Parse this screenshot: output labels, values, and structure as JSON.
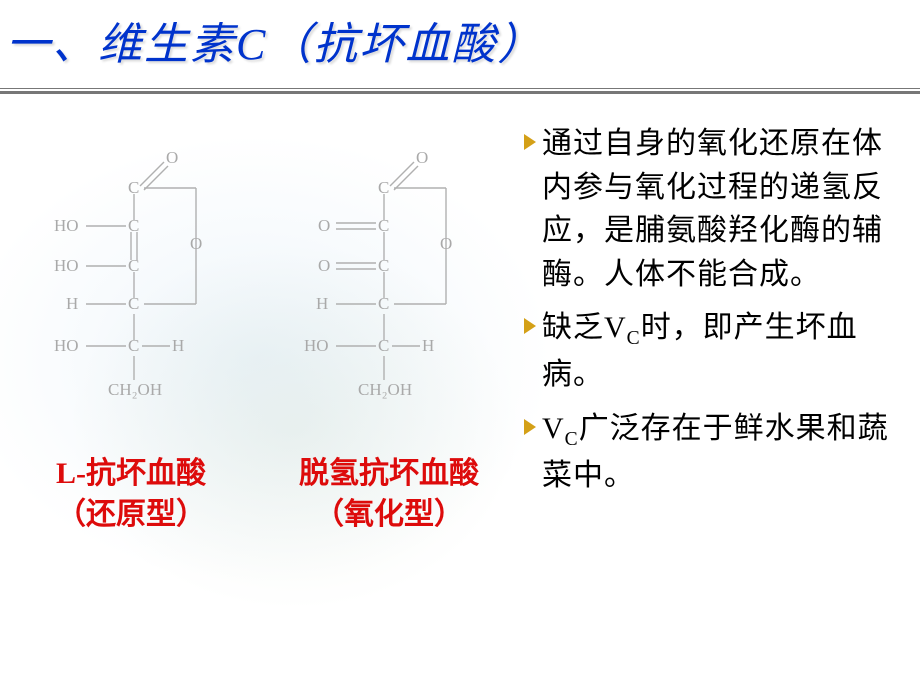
{
  "title": "一、维生素C（抗坏血酸）",
  "title_color": "#0033cc",
  "title_fontsize": 44,
  "rule_color": "#777777",
  "struct_stroke": "#b0b0b0",
  "struct_text_color": "#a9a9a9",
  "background_color": "#ffffff",
  "struct_left": {
    "atoms": {
      "o_top": "O",
      "c1": "C",
      "ho2": "HO",
      "c2": "C",
      "ho3": "HO",
      "c3": "C",
      "h4": "H",
      "c4": "C",
      "o_ring": "O",
      "ho5": "HO",
      "c5": "C",
      "h5": "H",
      "ch2oh": "CH₂OH"
    },
    "label_line1": "L-抗坏血酸",
    "label_line2": "（还原型）"
  },
  "struct_right": {
    "atoms": {
      "o_top": "O",
      "c1": "C",
      "o2": "O",
      "c2": "C",
      "o3": "O",
      "c3": "C",
      "h4": "H",
      "c4": "C",
      "o_ring": "O",
      "ho5": "HO",
      "c5": "C",
      "h5": "H",
      "ch2oh": "CH₂OH"
    },
    "label_line1": "脱氢抗坏血酸",
    "label_line2": "（氧化型）",
    "double_bond_left": true
  },
  "label_color": "#dd0b0b",
  "label_fontsize": 30,
  "bullets": [
    {
      "text": "通过自身的氧化还原在体内参与氧化过程的递氢反应，是脯氨酸羟化酶的辅酶。人体不能合成。"
    },
    {
      "text_html": "缺乏V<span class=\"sub\">C</span>时，即产生坏血病。"
    },
    {
      "text_html": "V<span class=\"sub\">C</span>广泛存在于鲜水果和蔬菜中。"
    }
  ],
  "bullet_tri_color": "#d4a017",
  "body_fontsize": 30,
  "body_color": "#000000"
}
